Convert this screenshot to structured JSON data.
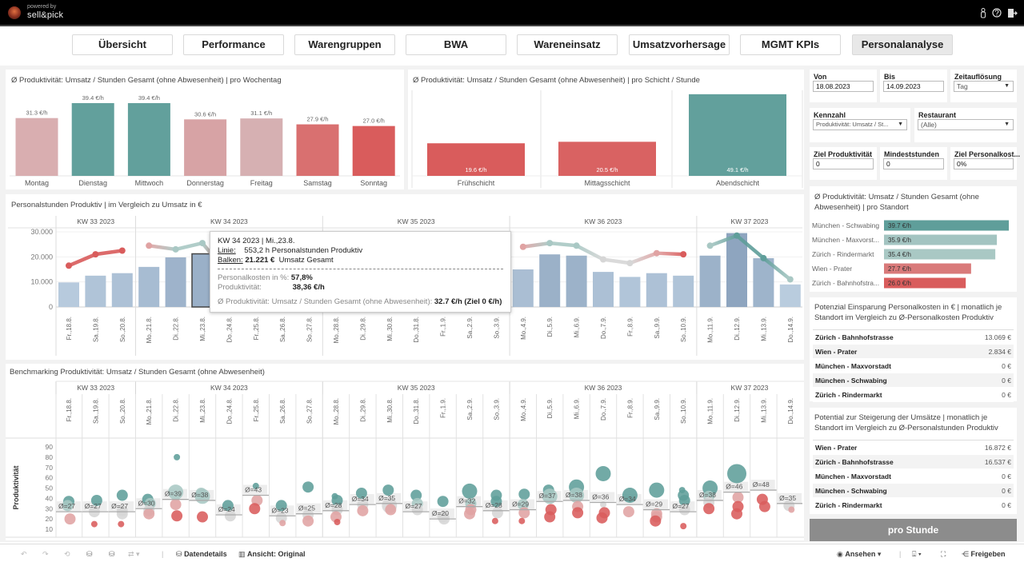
{
  "app": {
    "powered_by": "powered by",
    "brand": "sell&pick",
    "icons": [
      "user-icon",
      "help-icon",
      "logout-icon"
    ]
  },
  "nav": {
    "tabs": [
      "Übersicht",
      "Performance",
      "Warengruppen",
      "BWA",
      "Wareneinsatz",
      "Umsatzvorhersage",
      "MGMT KPIs",
      "Personalanalyse"
    ],
    "active": "Personalanalyse"
  },
  "colors": {
    "teal": "#5f9e9a",
    "light_teal": "#a9c8c4",
    "grey": "#d6d6d6",
    "light_red": "#e0a3a3",
    "red": "#d95c5c",
    "bar_light": "#cfe0ef",
    "bar_dark": "#8ea5bf",
    "button": "#8c8c8c"
  },
  "weekday_chart": {
    "title": "Ø Produktivität: Umsatz / Stunden Gesamt (ohne Abwesenheit) | pro Wochentag",
    "categories": [
      "Montag",
      "Dienstag",
      "Mittwoch",
      "Donnerstag",
      "Freitag",
      "Samstag",
      "Sonntag"
    ],
    "values": [
      31.3,
      39.4,
      39.4,
      30.6,
      31.1,
      27.9,
      27.0
    ],
    "labels": [
      "31.3 €/h",
      "39.4 €/h",
      "39.4 €/h",
      "30.6 €/h",
      "31.1 €/h",
      "27.9 €/h",
      "27.0 €/h"
    ],
    "colors": [
      "#d9aeb0",
      "#62a09c",
      "#62a09c",
      "#d7a3a5",
      "#d6b0b2",
      "#d97070",
      "#d95c5c"
    ]
  },
  "shift_chart": {
    "title": "Ø Produktivität: Umsatz / Stunden Gesamt (ohne Abwesenheit) | pro Schicht / Stunde",
    "categories": [
      "Frühschicht",
      "Mittagsschicht",
      "Abendschicht"
    ],
    "values": [
      19.6,
      20.5,
      49.1
    ],
    "labels": [
      "19.6 €/h",
      "20.5 €/h",
      "49.1 €/h"
    ],
    "colors": [
      "#d95c5c",
      "#d96262",
      "#62a09c"
    ]
  },
  "filters": {
    "von": {
      "label": "Von",
      "value": "18.08.2023"
    },
    "bis": {
      "label": "Bis",
      "value": "14.09.2023"
    },
    "zeitaufloesung": {
      "label": "Zeitauflösung",
      "value": "Tag"
    },
    "kennzahl": {
      "label": "Kennzahl",
      "value": "Produktivität: Umsatz / St..."
    },
    "restaurant": {
      "label": "Restaurant",
      "value": "(Alle)"
    },
    "ziel_produktivitaet": {
      "label": "Ziel Produktivität",
      "value": "0"
    },
    "mindeststunden": {
      "label": "Mindeststunden",
      "value": "0"
    },
    "ziel_personalkosten": {
      "label": "Ziel Personalkost...",
      "value": "0%"
    }
  },
  "standort_chart": {
    "title": "Ø Produktivität: Umsatz / Stunden Gesamt (ohne Abwesenheit) | pro Standort",
    "categories": [
      "München - Schwabing",
      "München - Maxvorst...",
      "Zürich - Rindermarkt",
      "Wien - Prater",
      "Zürich - Bahnhofstra..."
    ],
    "values": [
      39.7,
      35.9,
      35.4,
      27.7,
      26.0
    ],
    "labels": [
      "39.7 €/h",
      "35.9 €/h",
      "35.4 €/h",
      "27.7 €/h",
      "26.0 €/h"
    ],
    "colors": [
      "#5f9e9a",
      "#a3c4c1",
      "#a9c8c4",
      "#d97a7a",
      "#d95c5c"
    ]
  },
  "hours_chart": {
    "title": "Personalstunden Produktiv | im Vergleich zu Umsatz in €",
    "y_ticks": [
      "30.000",
      "20.000",
      "10.000",
      "0"
    ],
    "y_tick_values": [
      30000,
      20000,
      10000,
      0
    ],
    "ylim": [
      0,
      30000
    ],
    "selected_day": "Mi.,23.8."
  },
  "weeks": [
    {
      "label": "KW 33 2023",
      "days": 3
    },
    {
      "label": "KW 34 2023",
      "days": 7
    },
    {
      "label": "KW 35 2023",
      "days": 7
    },
    {
      "label": "KW 36 2023",
      "days": 7
    },
    {
      "label": "KW 37 2023",
      "days": 4
    }
  ],
  "days": [
    {
      "label": "Fr.,18.8.",
      "revenue": 9800,
      "hours": 358,
      "line_color": "red",
      "avg": 27,
      "avg_label": "Ø=27",
      "points": [
        [
          37,
          2
        ],
        [
          33,
          2
        ],
        [
          20,
          2
        ]
      ]
    },
    {
      "label": "Sa.,19.8.",
      "revenue": 12500,
      "hours": 456,
      "line_color": "red",
      "avg": 27,
      "avg_label": "Ø=27",
      "points": [
        [
          38,
          2
        ],
        [
          27,
          2
        ],
        [
          15,
          1
        ]
      ]
    },
    {
      "label": "So.,20.8.",
      "revenue": 13500,
      "hours": 488,
      "line_color": "red",
      "avg": 27,
      "avg_label": "Ø=27",
      "points": [
        [
          43,
          2
        ],
        [
          28,
          2
        ],
        [
          25,
          2
        ],
        [
          15,
          1
        ]
      ]
    },
    {
      "label": "Mo.,21.8.",
      "revenue": 16000,
      "hours": 531,
      "line_color": "light_red",
      "avg": 30,
      "avg_label": "Ø=30",
      "points": [
        [
          39,
          2
        ],
        [
          35,
          2
        ],
        [
          28,
          2
        ],
        [
          25,
          2
        ]
      ]
    },
    {
      "label": "Di.,22.8.",
      "revenue": 19800,
      "hours": 499,
      "line_color": "light_teal",
      "avg": 39,
      "avg_label": "Ø=39",
      "points": [
        [
          80,
          1
        ],
        [
          46,
          3
        ],
        [
          34,
          2
        ],
        [
          23,
          2
        ]
      ]
    },
    {
      "label": "Mi.,23.8.",
      "revenue": 21221,
      "hours": 553.2,
      "line_color": "light_teal",
      "avg": 38,
      "avg_label": "Ø=38",
      "points": [
        [
          45,
          2
        ],
        [
          42,
          3
        ],
        [
          22,
          2
        ]
      ]
    },
    {
      "label": "Do.,24.8.",
      "revenue": 8000,
      "hours": 271,
      "line_color": "red",
      "avg": 24,
      "avg_label": "Ø=24",
      "points": [
        [
          33,
          2
        ],
        [
          23,
          2
        ]
      ]
    },
    {
      "label": "Fr.,25.8.",
      "revenue": 18500,
      "hours": 423,
      "line_color": "teal",
      "avg": 43,
      "avg_label": "Ø=43",
      "points": [
        [
          52,
          1
        ],
        [
          38,
          2
        ],
        [
          30,
          2
        ]
      ]
    },
    {
      "label": "Sa.,26.8.",
      "revenue": 12000,
      "hours": 521,
      "line_color": "red",
      "avg": 23,
      "avg_label": "Ø=23",
      "points": [
        [
          33,
          2
        ],
        [
          21,
          2
        ],
        [
          16,
          1
        ]
      ]
    },
    {
      "label": "So.,27.8.",
      "revenue": 11000,
      "hours": 434,
      "line_color": "red",
      "avg": 25,
      "avg_label": "Ø=25",
      "points": [
        [
          51,
          2
        ],
        [
          24,
          2
        ],
        [
          18,
          2
        ]
      ]
    },
    {
      "label": "Mo.,28.8.",
      "revenue": 14000,
      "hours": 499,
      "line_color": "light_red",
      "avg": 28,
      "avg_label": "Ø=28",
      "points": [
        [
          42,
          1
        ],
        [
          38,
          2
        ],
        [
          29,
          2
        ],
        [
          22,
          2
        ],
        [
          17,
          1
        ]
      ]
    },
    {
      "label": "Di.,29.8.",
      "revenue": 18000,
      "hours": 531,
      "line_color": "grey",
      "avg": 34,
      "avg_label": "Ø=34",
      "points": [
        [
          45,
          2
        ],
        [
          34,
          2
        ],
        [
          28,
          2
        ]
      ]
    },
    {
      "label": "Mi.,30.8.",
      "revenue": 18500,
      "hours": 531,
      "line_color": "grey",
      "avg": 35,
      "avg_label": "Ø=35",
      "points": [
        [
          48,
          2
        ],
        [
          33,
          3
        ],
        [
          29,
          2
        ]
      ]
    },
    {
      "label": "Do.,31.8.",
      "revenue": 8000,
      "hours": 347,
      "line_color": "light_red",
      "avg": 27,
      "avg_label": "Ø=27",
      "points": [
        [
          43,
          2
        ],
        [
          35,
          2
        ],
        [
          29,
          2
        ]
      ]
    },
    {
      "label": "Fr.,1.9.",
      "revenue": 8000,
      "hours": 423,
      "line_color": "red",
      "avg": 20,
      "avg_label": "Ø=20",
      "points": [
        [
          37,
          2
        ],
        [
          22,
          2
        ],
        [
          20,
          2
        ]
      ]
    },
    {
      "label": "Sa.,2.9.",
      "revenue": 16500,
      "hours": 521,
      "line_color": "light_red",
      "avg": 32,
      "avg_label": "Ø=32",
      "points": [
        [
          47,
          3
        ],
        [
          35,
          2
        ],
        [
          29,
          2
        ],
        [
          25,
          2
        ]
      ]
    },
    {
      "label": "So.,3.9.",
      "revenue": 12500,
      "hours": 466,
      "line_color": "red",
      "avg": 28,
      "avg_label": "Ø=28",
      "points": [
        [
          43,
          2
        ],
        [
          37,
          2
        ],
        [
          26,
          2
        ],
        [
          18,
          1
        ]
      ]
    },
    {
      "label": "Mo.,4.9.",
      "revenue": 15000,
      "hours": 521,
      "line_color": "light_red",
      "avg": 29,
      "avg_label": "Ø=29",
      "points": [
        [
          44,
          2
        ],
        [
          34,
          2
        ],
        [
          26,
          2
        ],
        [
          18,
          1
        ]
      ]
    },
    {
      "label": "Di.,5.9.",
      "revenue": 21000,
      "hours": 553,
      "line_color": "light_teal",
      "avg": 37,
      "avg_label": "Ø=37",
      "points": [
        [
          48,
          2
        ],
        [
          42,
          3
        ],
        [
          29,
          2
        ],
        [
          22,
          2
        ]
      ]
    },
    {
      "label": "Mi.,6.9.",
      "revenue": 20500,
      "hours": 531,
      "line_color": "light_teal",
      "avg": 38,
      "avg_label": "Ø=38",
      "points": [
        [
          51,
          3
        ],
        [
          43,
          3
        ],
        [
          32,
          2
        ],
        [
          26,
          2
        ]
      ]
    },
    {
      "label": "Do.,7.9.",
      "revenue": 14000,
      "hours": 412,
      "line_color": "grey",
      "avg": 36,
      "avg_label": "Ø=36",
      "points": [
        [
          64,
          3
        ],
        [
          34,
          1
        ],
        [
          26,
          2
        ],
        [
          21,
          2
        ]
      ]
    },
    {
      "label": "Fr.,8.9.",
      "revenue": 12000,
      "hours": 380,
      "line_color": "grey",
      "avg": 34,
      "avg_label": "Ø=34",
      "points": [
        [
          43,
          3
        ],
        [
          27,
          2
        ]
      ]
    },
    {
      "label": "Sa.,9.9.",
      "revenue": 13500,
      "hours": 466,
      "line_color": "light_red",
      "avg": 29,
      "avg_label": "Ø=29",
      "points": [
        [
          48,
          3
        ],
        [
          25,
          2
        ],
        [
          22,
          2
        ],
        [
          18,
          2
        ]
      ]
    },
    {
      "label": "So.,10.9.",
      "revenue": 12500,
      "hours": 456,
      "line_color": "red",
      "avg": 27,
      "avg_label": "Ø=27",
      "points": [
        [
          48,
          1
        ],
        [
          43,
          2
        ],
        [
          38,
          2
        ],
        [
          29,
          2
        ],
        [
          13,
          1
        ]
      ]
    },
    {
      "label": "Mo.,11.9.",
      "revenue": 20500,
      "hours": 531,
      "line_color": "light_teal",
      "avg": 38,
      "avg_label": "Ø=38",
      "points": [
        [
          50,
          3
        ],
        [
          42,
          2
        ],
        [
          36,
          2
        ],
        [
          30,
          2
        ]
      ]
    },
    {
      "label": "Di.,12.9.",
      "revenue": 29500,
      "hours": 618,
      "line_color": "teal",
      "avg": 46,
      "avg_label": "Ø=46",
      "points": [
        [
          64,
          4
        ],
        [
          41,
          2
        ],
        [
          32,
          2
        ],
        [
          25,
          2
        ]
      ]
    },
    {
      "label": "Mi.,13.9.",
      "revenue": 19500,
      "hours": 423,
      "line_color": "teal",
      "avg": 48,
      "avg_label": "Ø=48",
      "points": [
        [
          39,
          2
        ],
        [
          32,
          2
        ]
      ]
    },
    {
      "label": "Do.,14.9.",
      "revenue": 9000,
      "hours": 239,
      "line_color": "light_teal",
      "avg": 35,
      "avg_label": "Ø=35",
      "points": [
        [
          33,
          2
        ],
        [
          29,
          1
        ]
      ]
    }
  ],
  "benchmark_chart": {
    "title": "Benchmarking Produktivität: Umsatz / Stunden Gesamt (ohne Abwesenheit)",
    "ylabel": "Produktivität",
    "y_ticks": [
      90,
      80,
      70,
      60,
      50,
      40,
      30,
      20,
      10
    ]
  },
  "tooltip": {
    "header": "KW 34 2023 | Mi.,23.8.",
    "line_label": "Linie:",
    "line_value": "553,2 h Personalstunden Produktiv",
    "bar_label": "Balken:",
    "bar_value": "21.221 €",
    "bar_text": "Umsatz Gesamt",
    "cost_label": "Personalkosten in %:",
    "cost_value": "57,8%",
    "prod_label": "Produktivität:",
    "prod_value": "38,36 €/h",
    "avg_label": "Ø Produktivität: Umsatz / Stunden Gesamt (ohne Abwesenheit):",
    "avg_value": "32.7 €/h (Ziel 0 €/h)"
  },
  "potential_savings": {
    "title": "Potenzial Einsparung Personalkosten in € | monatlich je Standort im Vergleich zu Ø-Personalkosten Produktiv",
    "rows": [
      {
        "name": "Zürich - Bahnhofstrasse",
        "value": "13.069 €"
      },
      {
        "name": "Wien - Prater",
        "value": "2.834 €"
      },
      {
        "name": "München - Maxvorstadt",
        "value": "0 €"
      },
      {
        "name": "München - Schwabing",
        "value": "0 €"
      },
      {
        "name": "Zürich - Rindermarkt",
        "value": "0 €"
      }
    ]
  },
  "potential_revenue": {
    "title": "Potential zur Steigerung der Umsätze | monatlich je Standort im Vergleich zu Ø-Personalstunden Produktiv",
    "rows": [
      {
        "name": "Wien - Prater",
        "value": "16.872 €"
      },
      {
        "name": "Zürich - Bahnhofstrasse",
        "value": "16.537 €"
      },
      {
        "name": "München - Maxvorstadt",
        "value": "0 €"
      },
      {
        "name": "München - Schwabing",
        "value": "0 €"
      },
      {
        "name": "Zürich - Rindermarkt",
        "value": "0 €"
      }
    ]
  },
  "pro_stunde_button": "pro Stunde",
  "toolbar": {
    "data_details": "Datendetails",
    "view": "Ansicht: Original",
    "watch": "Ansehen",
    "share": "Freigeben"
  }
}
